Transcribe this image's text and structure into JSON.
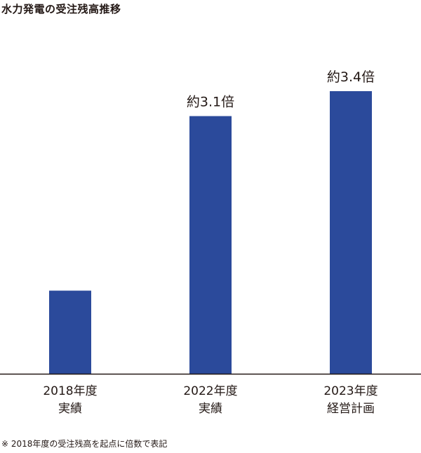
{
  "chart_data": {
    "type": "bar",
    "title": "水力発電の受注残高推移",
    "categories": [
      [
        "2018年度",
        "実績"
      ],
      [
        "2022年度",
        "実績"
      ],
      [
        "2023年度",
        "経営計画"
      ]
    ],
    "values": [
      1.0,
      3.1,
      3.4
    ],
    "data_labels": [
      "",
      "約3.1倍",
      "約3.4倍"
    ],
    "bar_color": "#2b4a9b",
    "axis_color": "#231815",
    "ylim": [
      0,
      3.4
    ],
    "grid": false,
    "legend": "none",
    "footnote": "※ 2018年度の受注残高を起点に倍数で表記"
  }
}
